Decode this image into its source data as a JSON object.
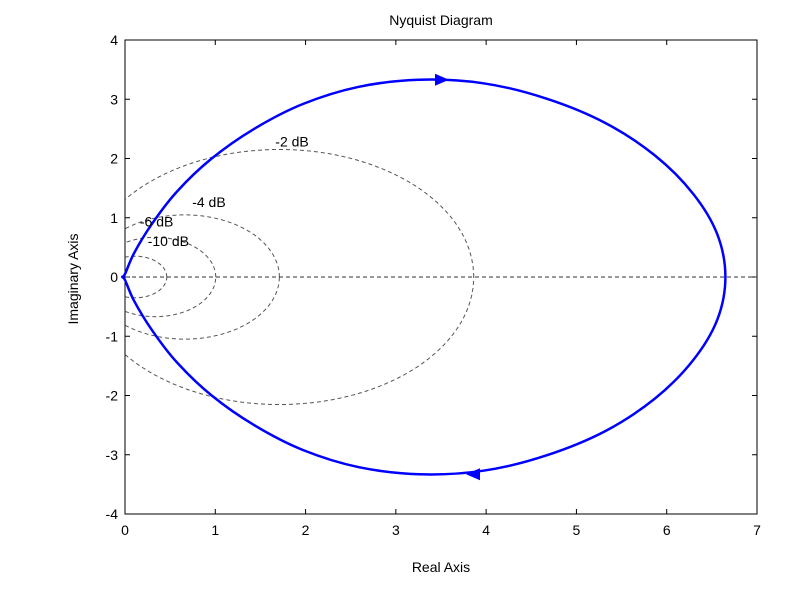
{
  "chart_data": {
    "type": "line",
    "title": "Nyquist Diagram",
    "xlabel": "Real Axis",
    "ylabel": "Imaginary Axis",
    "xlim": [
      0,
      7
    ],
    "ylim": [
      -4,
      4
    ],
    "xticks": [
      0,
      1,
      2,
      3,
      4,
      5,
      6,
      7
    ],
    "yticks": [
      -4,
      -3,
      -2,
      -1,
      0,
      1,
      2,
      3,
      4
    ],
    "xtick_labels": [
      "0",
      "1",
      "2",
      "3",
      "4",
      "5",
      "6",
      "7"
    ],
    "ytick_labels": [
      "-4",
      "-3",
      "-2",
      "-1",
      "0",
      "1",
      "2",
      "3",
      "4"
    ],
    "grid": false,
    "series": [
      {
        "color": "#0000ff",
        "style": "solid",
        "direction_arrows": "positive frequency branch travels clockwise: arrow points right on top half, left on bottom half",
        "x": [
          6.65,
          6.56,
          6.29,
          5.87,
          5.32,
          4.67,
          3.97,
          3.26,
          2.59,
          1.97,
          1.43,
          0.96,
          0.58,
          0.3,
          0.1,
          0.0,
          -0.03,
          0.0,
          0.1,
          0.3,
          0.58,
          0.96,
          1.43,
          1.97,
          2.59,
          3.26,
          3.97,
          4.67,
          5.32,
          5.87,
          6.29,
          6.56,
          6.65
        ],
        "y": [
          0.0,
          0.72,
          1.41,
          2.05,
          2.6,
          3.01,
          3.27,
          3.33,
          3.21,
          2.92,
          2.5,
          2.0,
          1.45,
          0.9,
          0.4,
          0.05,
          0.0,
          -0.05,
          -0.4,
          -0.9,
          -1.45,
          -2.0,
          -2.5,
          -2.92,
          -3.21,
          -3.33,
          -3.27,
          -3.01,
          -2.6,
          -2.05,
          -1.41,
          -0.72,
          0.0
        ]
      }
    ],
    "m_circles": [
      {
        "label": "-2 dB",
        "gain_db": -2
      },
      {
        "label": "-4 dB",
        "gain_db": -4
      },
      {
        "label": "-6 dB",
        "gain_db": -6
      },
      {
        "label": "-10 dB",
        "gain_db": -10
      }
    ],
    "reference_line": {
      "y": 0,
      "style": "dashed"
    }
  }
}
